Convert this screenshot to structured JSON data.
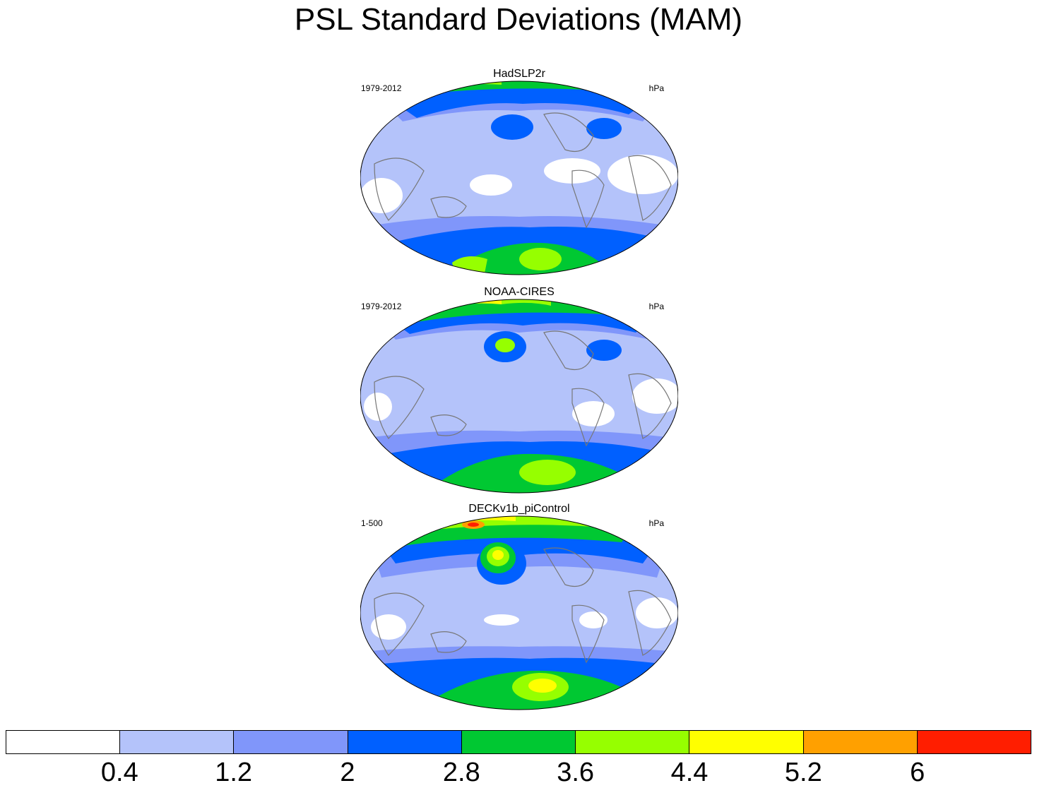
{
  "title": "PSL Standard Deviations (MAM)",
  "panels": [
    {
      "title": "HadSLP2r",
      "period": "1979-2012",
      "units": "hPa"
    },
    {
      "title": "NOAA-CIRES",
      "period": "1979-2012",
      "units": "hPa"
    },
    {
      "title": "DECKv1b_piControl",
      "period": "1-500",
      "units": "hPa"
    }
  ],
  "colorbar": {
    "colors": [
      "#ffffff",
      "#b4c3fa",
      "#8096fa",
      "#0060ff",
      "#00c832",
      "#96ff00",
      "#ffff00",
      "#ffa000",
      "#ff1e00"
    ],
    "labels": [
      "0.4",
      "1.2",
      "2",
      "2.8",
      "3.6",
      "4.4",
      "5.2",
      "6"
    ]
  }
}
